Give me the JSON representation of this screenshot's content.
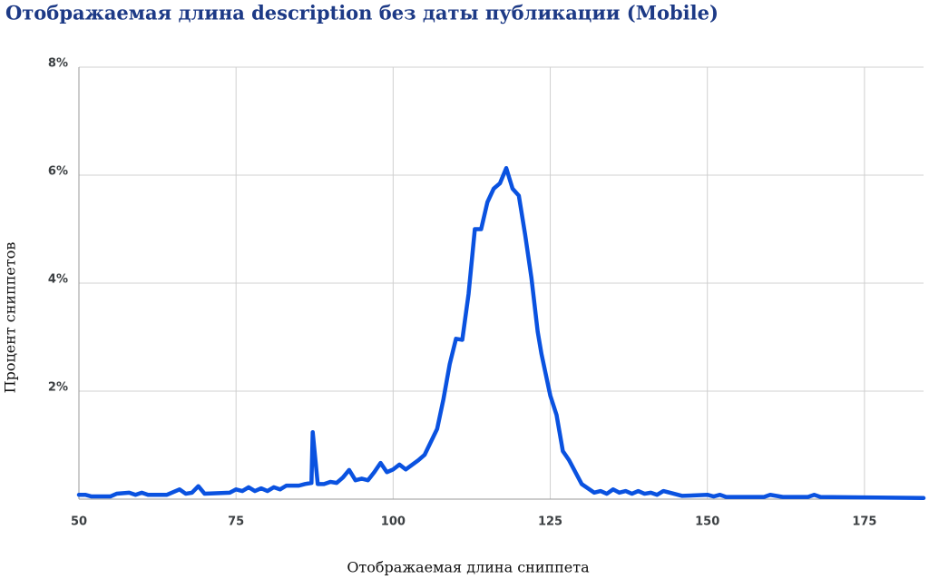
{
  "chart_data": {
    "type": "line",
    "title": "Отображаемая длина description без даты публикации (Mobile)",
    "x_label": "Отображаемая длина сниппета",
    "y_label": "Процент сниппетов",
    "grid": true,
    "xlim": [
      50,
      184.4
    ],
    "xticks": [
      50,
      75,
      100,
      125,
      150,
      175
    ],
    "ylim": [
      0,
      8
    ],
    "yticks": [
      {
        "value": 2,
        "label": "2%"
      },
      {
        "value": 4,
        "label": "4%"
      },
      {
        "value": 6,
        "label": "6%"
      },
      {
        "value": 8,
        "label": "8%"
      }
    ],
    "x": [
      50,
      51,
      52,
      55,
      56,
      58,
      59,
      60,
      61,
      64,
      66,
      67,
      68,
      69,
      70,
      74,
      75,
      76,
      77,
      78,
      79,
      80,
      81,
      82,
      83,
      85,
      86,
      87,
      87.2,
      88,
      89,
      90,
      91,
      92,
      93,
      94,
      95,
      96,
      97,
      98,
      99,
      100,
      101,
      102,
      104,
      105,
      107,
      108,
      109,
      110,
      111,
      112,
      113,
      114,
      115,
      116,
      117,
      118,
      119,
      120,
      121,
      122,
      123,
      123.6,
      125,
      126,
      127,
      128,
      130,
      131,
      132,
      133,
      134,
      135,
      136,
      137,
      138,
      139,
      140,
      141,
      142,
      143,
      144,
      146,
      150,
      151,
      152,
      153,
      159,
      160,
      162,
      166,
      167,
      168,
      184.4
    ],
    "series": [
      {
        "name": "Процент сниппетов",
        "color": "#0a52e0",
        "values": [
          0.08,
          0.08,
          0.05,
          0.05,
          0.1,
          0.12,
          0.08,
          0.12,
          0.08,
          0.08,
          0.18,
          0.1,
          0.12,
          0.24,
          0.1,
          0.12,
          0.18,
          0.15,
          0.22,
          0.15,
          0.2,
          0.15,
          0.22,
          0.18,
          0.25,
          0.25,
          0.28,
          0.3,
          1.24,
          0.28,
          0.28,
          0.32,
          0.3,
          0.4,
          0.54,
          0.35,
          0.38,
          0.35,
          0.5,
          0.67,
          0.5,
          0.55,
          0.64,
          0.55,
          0.72,
          0.82,
          1.3,
          1.85,
          2.5,
          2.97,
          2.95,
          3.8,
          5.0,
          5.0,
          5.5,
          5.75,
          5.85,
          6.13,
          5.75,
          5.62,
          4.9,
          4.1,
          3.1,
          2.69,
          1.92,
          1.56,
          0.89,
          0.72,
          0.28,
          0.2,
          0.12,
          0.15,
          0.1,
          0.18,
          0.12,
          0.15,
          0.1,
          0.15,
          0.1,
          0.12,
          0.08,
          0.15,
          0.12,
          0.06,
          0.08,
          0.05,
          0.08,
          0.04,
          0.04,
          0.08,
          0.04,
          0.04,
          0.08,
          0.04,
          0.02
        ]
      }
    ]
  }
}
